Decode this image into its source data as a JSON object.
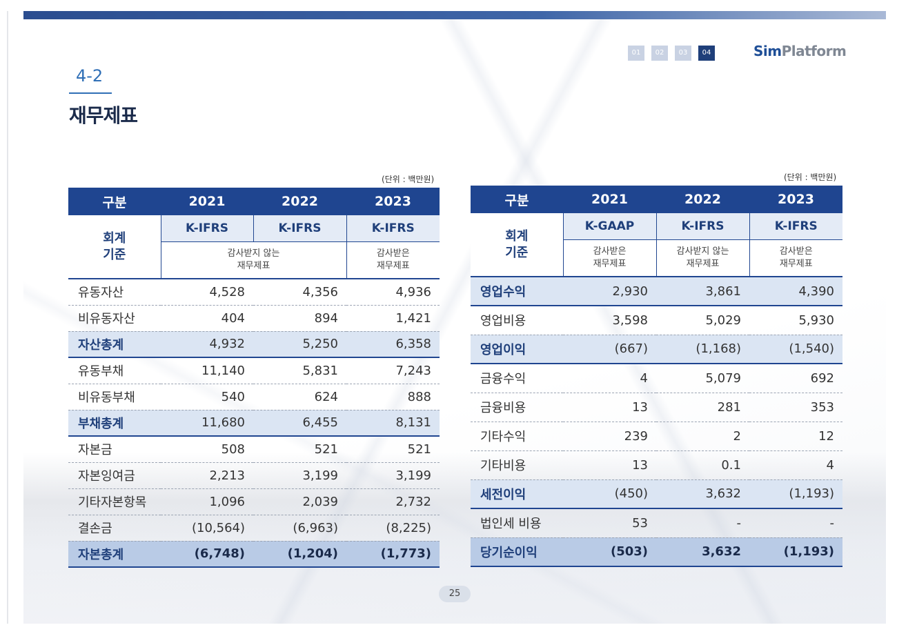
{
  "pager": [
    "01",
    "02",
    "03",
    "04"
  ],
  "pager_active_index": 3,
  "logo": {
    "part1": "Sim",
    "part2": "Platform"
  },
  "section": {
    "number": "4-2",
    "title": "재무제표"
  },
  "colors": {
    "primary": "#1f4590",
    "highlight_row": "#dbe5f3",
    "total_row": "#b9cbe6",
    "accent": "#2f6fb6"
  },
  "balance_sheet": {
    "unit": "(단위 : 백만원)",
    "headers": [
      "구분",
      "2021",
      "2022",
      "2023"
    ],
    "standard": {
      "label": "회계\n기준",
      "names": [
        "K-IFRS",
        "K-IFRS",
        "K-IFRS"
      ],
      "desc_2021_2022": "감사받지 않는\n재무제표",
      "desc_2023": "감사받은\n재무제표"
    },
    "rows": [
      {
        "label": "유동자산",
        "values": [
          "4,528",
          "4,356",
          "4,936"
        ],
        "style": ""
      },
      {
        "label": "비유동자산",
        "values": [
          "404",
          "894",
          "1,421"
        ],
        "style": ""
      },
      {
        "label": "자산총계",
        "values": [
          "4,932",
          "5,250",
          "6,358"
        ],
        "style": "hl"
      },
      {
        "label": "유동부채",
        "values": [
          "11,140",
          "5,831",
          "7,243"
        ],
        "style": ""
      },
      {
        "label": "비유동부채",
        "values": [
          "540",
          "624",
          "888"
        ],
        "style": ""
      },
      {
        "label": "부채총계",
        "values": [
          "11,680",
          "6,455",
          "8,131"
        ],
        "style": "hl"
      },
      {
        "label": "자본금",
        "values": [
          "508",
          "521",
          "521"
        ],
        "style": ""
      },
      {
        "label": "자본잉여금",
        "values": [
          "2,213",
          "3,199",
          "3,199"
        ],
        "style": ""
      },
      {
        "label": "기타자본항목",
        "values": [
          "1,096",
          "2,039",
          "2,732"
        ],
        "style": ""
      },
      {
        "label": "결손금",
        "values": [
          "(10,564)",
          "(6,963)",
          "(8,225)"
        ],
        "style": ""
      },
      {
        "label": "자본총계",
        "values": [
          "(6,748)",
          "(1,204)",
          "(1,773)"
        ],
        "style": "tot"
      }
    ]
  },
  "income_statement": {
    "unit": "(단위 : 백만원)",
    "headers": [
      "구분",
      "2021",
      "2022",
      "2023"
    ],
    "standard": {
      "label": "회계\n기준",
      "names": [
        "K-GAAP",
        "K-IFRS",
        "K-IFRS"
      ],
      "descs": [
        "감사받은\n재무제표",
        "감사받지 않는\n재무제표",
        "감사받은\n재무제표"
      ]
    },
    "rows": [
      {
        "label": "영업수익",
        "values": [
          "2,930",
          "3,861",
          "4,390"
        ],
        "style": "hl"
      },
      {
        "label": "영업비용",
        "values": [
          "3,598",
          "5,029",
          "5,930"
        ],
        "style": ""
      },
      {
        "label": "영업이익",
        "values": [
          "(667)",
          "(1,168)",
          "(1,540)"
        ],
        "style": "hl"
      },
      {
        "label": "금융수익",
        "values": [
          "4",
          "5,079",
          "692"
        ],
        "style": ""
      },
      {
        "label": "금융비용",
        "values": [
          "13",
          "281",
          "353"
        ],
        "style": ""
      },
      {
        "label": "기타수익",
        "values": [
          "239",
          "2",
          "12"
        ],
        "style": ""
      },
      {
        "label": "기타비용",
        "values": [
          "13",
          "0.1",
          "4"
        ],
        "style": ""
      },
      {
        "label": "세전이익",
        "values": [
          "(450)",
          "3,632",
          "(1,193)"
        ],
        "style": "hl"
      },
      {
        "label": "법인세 비용",
        "values": [
          "53",
          "-",
          "-"
        ],
        "style": ""
      },
      {
        "label": "당기순이익",
        "values": [
          "(503)",
          "3,632",
          "(1,193)"
        ],
        "style": "tot"
      }
    ]
  },
  "page_number": "25"
}
